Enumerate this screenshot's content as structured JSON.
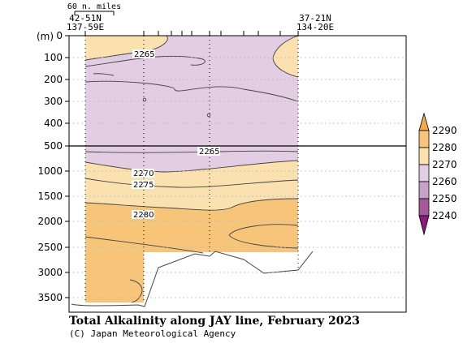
{
  "chart_data": {
    "type": "contour",
    "title": "Total Alkalinity along JAY line, February 2023",
    "credit": "(C) Japan Meteorological Agency",
    "section": "JAY line",
    "y_unit_label": "(m)",
    "scale_label": "60 n. miles",
    "start_station": {
      "lat": "42-51N",
      "lon": "137-59E"
    },
    "end_station": {
      "lat": "37-21N",
      "lon": "134-20E"
    },
    "y_ticks_upper": [
      "0",
      "100",
      "200",
      "300",
      "400",
      "500"
    ],
    "y_ticks_lower": [
      "1000",
      "1500",
      "2000",
      "2500",
      "3000",
      "3500"
    ],
    "y_break_depth": 500,
    "upper_panel_range_m": [
      0,
      500
    ],
    "lower_panel_range_m": [
      500,
      3800
    ],
    "grid": true,
    "colorbar": {
      "levels": [
        "2240",
        "2250",
        "2260",
        "2270",
        "2280",
        "2290"
      ],
      "colors": [
        "#8b1a7e",
        "#a5589a",
        "#c6a2c9",
        "#e2cde3",
        "#fbe0b0",
        "#f7c57a",
        "#f5a84e"
      ],
      "extend": "both"
    },
    "contour_labels": [
      "2265",
      "2265",
      "2270",
      "2275",
      "2280"
    ],
    "dominant_values": {
      "upper_0_500m": "2260-2270",
      "mid_600_1500m": "2270-2280",
      "deep_1500_3700m": "2280-2290"
    },
    "colors": {
      "purple_zone": "#e2cde3",
      "light_orange_zone": "#fbe0b0",
      "orange_zone": "#f7c57a",
      "contour_line": "#444444",
      "grid_line": "#bbbbbb"
    }
  }
}
